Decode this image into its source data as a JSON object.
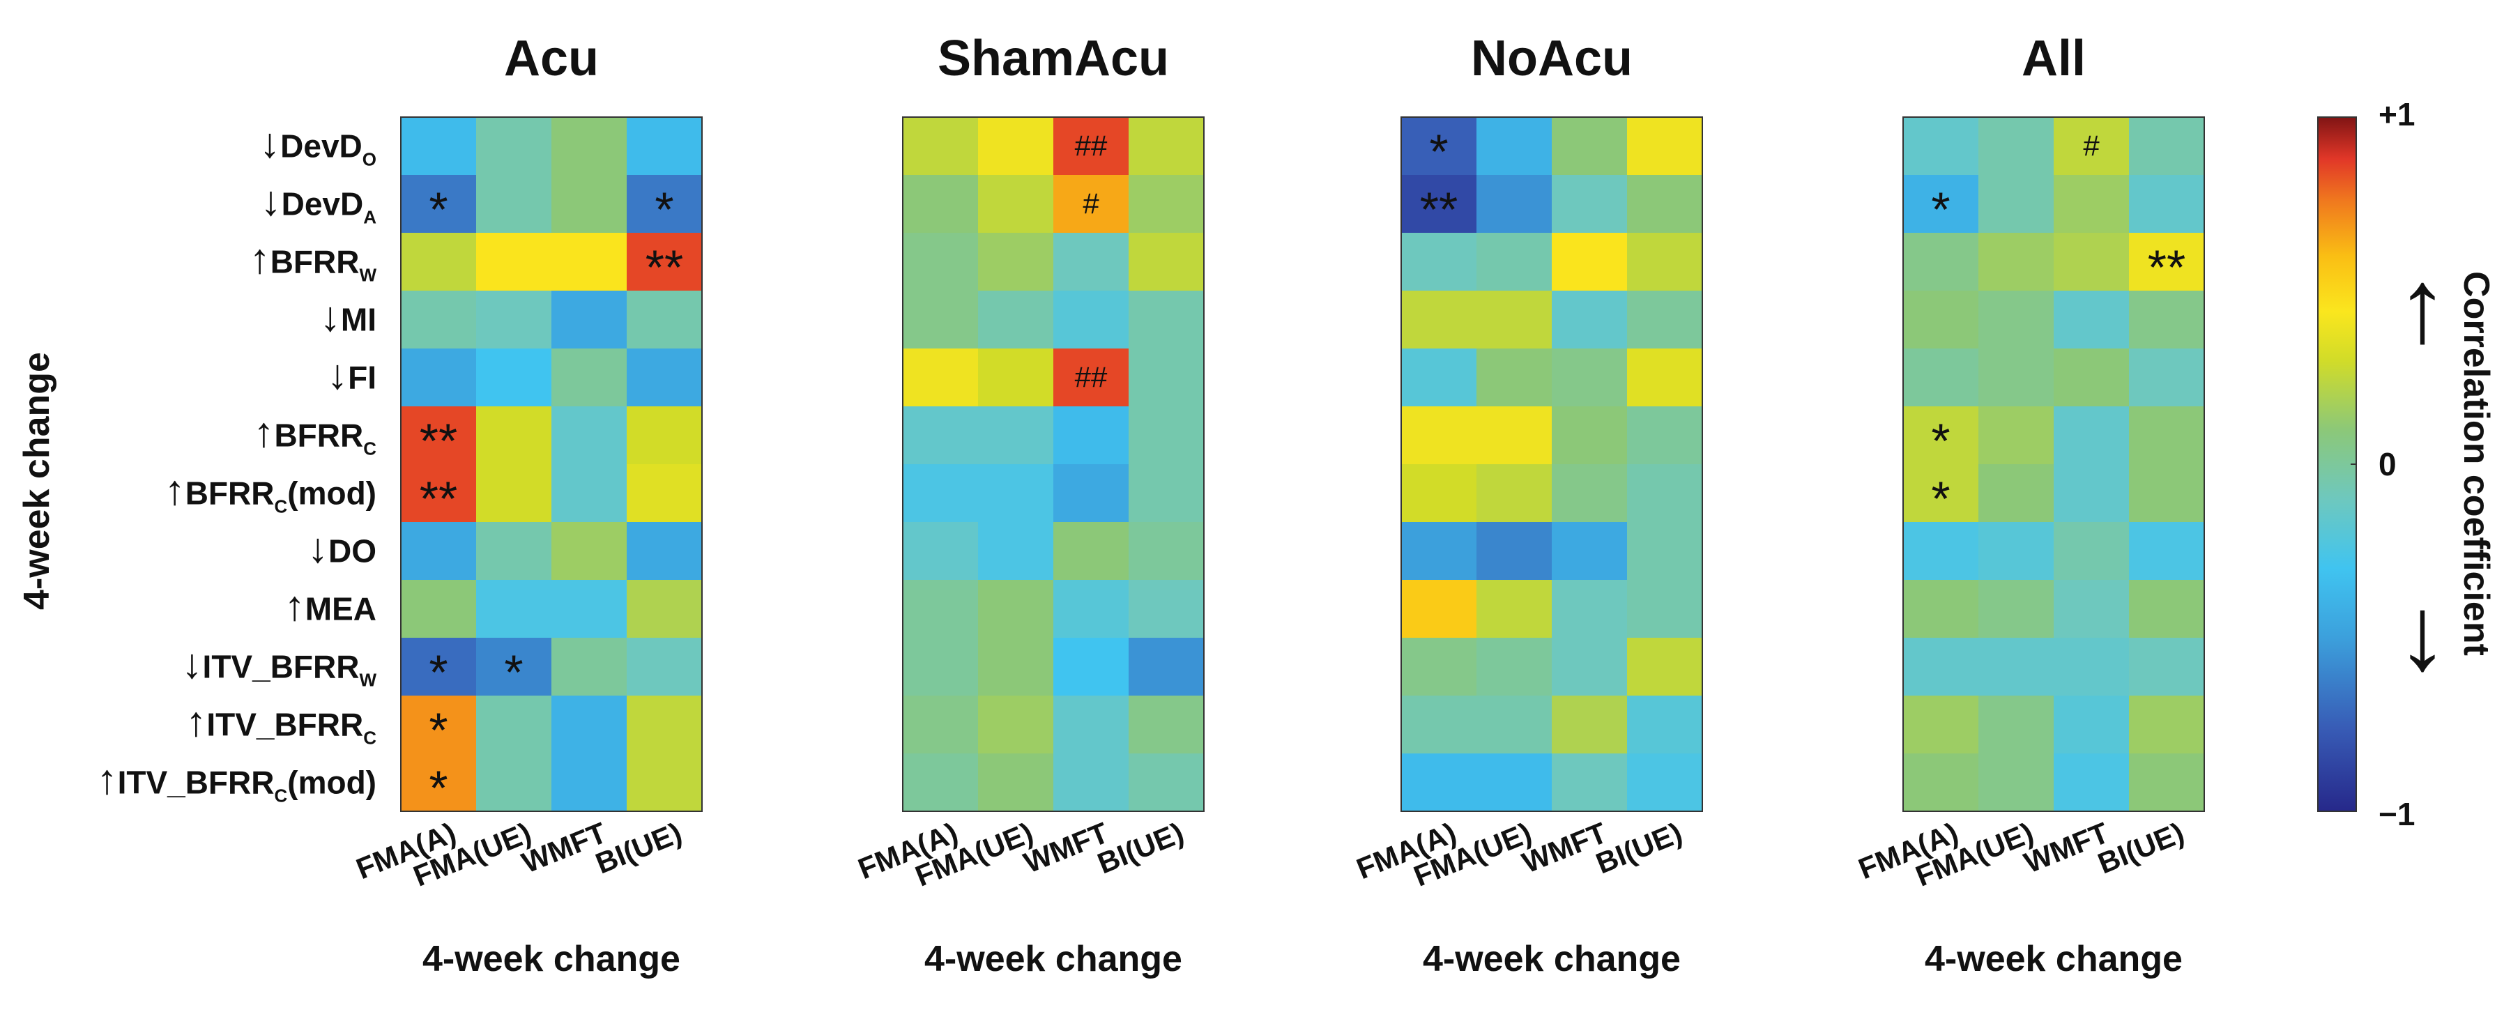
{
  "chart_data": {
    "type": "heatmap",
    "ylabel": "4-week change",
    "row_labels": [
      {
        "arrow": "↓",
        "base": "DevD",
        "sub": "O",
        "suffix": ""
      },
      {
        "arrow": "↓",
        "base": "DevD",
        "sub": "A",
        "suffix": ""
      },
      {
        "arrow": "↑",
        "base": "BFRR",
        "sub": "W",
        "suffix": ""
      },
      {
        "arrow": "↓",
        "base": "MI",
        "sub": "",
        "suffix": ""
      },
      {
        "arrow": "↓",
        "base": "FI",
        "sub": "",
        "suffix": ""
      },
      {
        "arrow": "↑",
        "base": "BFRR",
        "sub": "C",
        "suffix": ""
      },
      {
        "arrow": "↑",
        "base": "BFRR",
        "sub": "C",
        "suffix": "(mod)"
      },
      {
        "arrow": "↓",
        "base": "DO",
        "sub": "",
        "suffix": ""
      },
      {
        "arrow": "↑",
        "base": "MEA",
        "sub": "",
        "suffix": ""
      },
      {
        "arrow": "↓",
        "base": "ITV_BFRR",
        "sub": "W",
        "suffix": ""
      },
      {
        "arrow": "↑",
        "base": "ITV_BFRR",
        "sub": "C",
        "suffix": ""
      },
      {
        "arrow": "↑",
        "base": "ITV_BFRR",
        "sub": "C",
        "suffix": "(mod)"
      }
    ],
    "columns": [
      "FMA(A)",
      "FMA(UE)",
      "WMFT",
      "BI(UE)"
    ],
    "xlabel": "4-week change",
    "colorbar": {
      "label": "Correlation coefficient",
      "ticks": [
        "+1",
        "0",
        "−1"
      ],
      "range": [
        -1,
        1
      ],
      "arrow_up": "↑",
      "arrow_down": "↓"
    },
    "panels": [
      {
        "title": "Acu",
        "values": [
          [
            -0.35,
            -0.05,
            0.1,
            -0.35
          ],
          [
            -0.65,
            -0.05,
            0.1,
            -0.65
          ],
          [
            0.25,
            0.45,
            0.45,
            0.85
          ],
          [
            -0.05,
            -0.1,
            -0.45,
            -0.05
          ],
          [
            -0.45,
            -0.3,
            0.0,
            -0.45
          ],
          [
            0.85,
            0.3,
            -0.15,
            0.3
          ],
          [
            0.85,
            0.3,
            -0.15,
            0.35
          ],
          [
            -0.45,
            -0.05,
            0.15,
            -0.45
          ],
          [
            0.1,
            -0.25,
            -0.25,
            0.2
          ],
          [
            -0.7,
            -0.6,
            0.0,
            -0.1
          ],
          [
            0.7,
            -0.05,
            -0.4,
            0.25
          ],
          [
            0.7,
            -0.05,
            -0.4,
            0.25
          ]
        ],
        "annotations": [
          [
            "",
            "",
            "",
            ""
          ],
          [
            "*",
            "",
            "",
            "*"
          ],
          [
            "",
            "",
            "",
            "**"
          ],
          [
            "",
            "",
            "",
            ""
          ],
          [
            "",
            "",
            "",
            ""
          ],
          [
            "**",
            "",
            "",
            ""
          ],
          [
            "**",
            "",
            "",
            ""
          ],
          [
            "",
            "",
            "",
            ""
          ],
          [
            "",
            "",
            "",
            ""
          ],
          [
            "*",
            "*",
            "",
            ""
          ],
          [
            "*",
            "",
            "",
            ""
          ],
          [
            "*",
            "",
            "",
            ""
          ]
        ]
      },
      {
        "title": "ShamAcu",
        "values": [
          [
            0.25,
            0.4,
            0.85,
            0.25
          ],
          [
            0.1,
            0.25,
            0.65,
            0.15
          ],
          [
            0.05,
            0.15,
            -0.1,
            0.25
          ],
          [
            0.05,
            -0.05,
            -0.2,
            -0.05
          ],
          [
            0.4,
            0.3,
            0.85,
            -0.05
          ],
          [
            -0.15,
            -0.15,
            -0.35,
            -0.05
          ],
          [
            -0.25,
            -0.25,
            -0.45,
            -0.05
          ],
          [
            -0.15,
            -0.25,
            0.1,
            0.0
          ],
          [
            0.0,
            0.1,
            -0.2,
            -0.1
          ],
          [
            0.0,
            0.1,
            -0.3,
            -0.55
          ],
          [
            0.05,
            0.15,
            -0.15,
            0.05
          ],
          [
            0.0,
            0.1,
            -0.15,
            -0.05
          ]
        ],
        "annotations": [
          [
            "",
            "",
            "##",
            ""
          ],
          [
            "",
            "",
            "#",
            ""
          ],
          [
            "",
            "",
            "",
            ""
          ],
          [
            "",
            "",
            "",
            ""
          ],
          [
            "",
            "",
            "##",
            ""
          ],
          [
            "",
            "",
            "",
            ""
          ],
          [
            "",
            "",
            "",
            ""
          ],
          [
            "",
            "",
            "",
            ""
          ],
          [
            "",
            "",
            "",
            ""
          ],
          [
            "",
            "",
            "",
            ""
          ],
          [
            "",
            "",
            "",
            ""
          ],
          [
            "",
            "",
            "",
            ""
          ]
        ]
      },
      {
        "title": "NoAcu",
        "values": [
          [
            -0.75,
            -0.4,
            0.1,
            0.4
          ],
          [
            -0.85,
            -0.55,
            -0.1,
            0.1
          ],
          [
            -0.1,
            -0.05,
            0.45,
            0.25
          ],
          [
            0.25,
            0.25,
            -0.15,
            0.0
          ],
          [
            -0.2,
            0.1,
            0.05,
            0.35
          ],
          [
            0.4,
            0.4,
            0.1,
            0.0
          ],
          [
            0.3,
            0.25,
            0.05,
            -0.05
          ],
          [
            -0.5,
            -0.6,
            -0.45,
            -0.05
          ],
          [
            0.55,
            0.25,
            -0.1,
            -0.05
          ],
          [
            0.05,
            0.0,
            -0.1,
            0.25
          ],
          [
            -0.05,
            -0.05,
            0.2,
            -0.2
          ],
          [
            -0.35,
            -0.35,
            -0.1,
            -0.25
          ]
        ],
        "annotations": [
          [
            "*",
            "",
            "",
            ""
          ],
          [
            "**",
            "",
            "",
            ""
          ],
          [
            "",
            "",
            "",
            ""
          ],
          [
            "",
            "",
            "",
            ""
          ],
          [
            "",
            "",
            "",
            ""
          ],
          [
            "",
            "",
            "",
            ""
          ],
          [
            "",
            "",
            "",
            ""
          ],
          [
            "",
            "",
            "",
            ""
          ],
          [
            "",
            "",
            "",
            ""
          ],
          [
            "",
            "",
            "",
            ""
          ],
          [
            "",
            "",
            "",
            ""
          ],
          [
            "",
            "",
            "",
            ""
          ]
        ]
      },
      {
        "title": "All",
        "values": [
          [
            -0.15,
            -0.05,
            0.25,
            -0.05
          ],
          [
            -0.4,
            -0.05,
            0.15,
            -0.15
          ],
          [
            0.05,
            0.15,
            0.2,
            0.4
          ],
          [
            0.1,
            0.05,
            -0.15,
            0.05
          ],
          [
            0.0,
            0.05,
            0.1,
            -0.1
          ],
          [
            0.25,
            0.15,
            -0.15,
            0.1
          ],
          [
            0.25,
            0.1,
            -0.15,
            0.1
          ],
          [
            -0.25,
            -0.2,
            -0.05,
            -0.25
          ],
          [
            0.1,
            0.05,
            -0.1,
            0.1
          ],
          [
            -0.15,
            -0.15,
            -0.15,
            -0.1
          ],
          [
            0.15,
            0.05,
            -0.2,
            0.15
          ],
          [
            0.1,
            0.05,
            -0.25,
            0.1
          ]
        ],
        "annotations": [
          [
            "",
            "",
            "#",
            ""
          ],
          [
            "*",
            "",
            "",
            ""
          ],
          [
            "",
            "",
            "",
            "**"
          ],
          [
            "",
            "",
            "",
            ""
          ],
          [
            "",
            "",
            "",
            ""
          ],
          [
            "*",
            "",
            "",
            ""
          ],
          [
            "*",
            "",
            "",
            ""
          ],
          [
            "",
            "",
            "",
            ""
          ],
          [
            "",
            "",
            "",
            ""
          ],
          [
            "",
            "",
            "",
            ""
          ],
          [
            "",
            "",
            "",
            ""
          ],
          [
            "",
            "",
            "",
            ""
          ]
        ]
      }
    ]
  }
}
